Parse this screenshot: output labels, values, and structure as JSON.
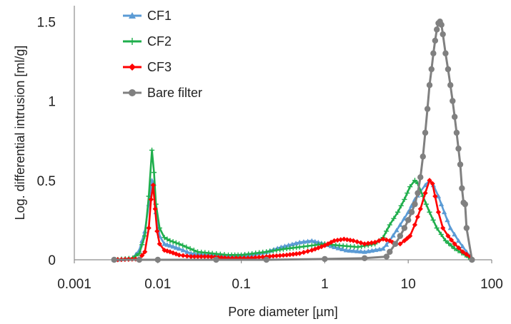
{
  "chart_data": {
    "type": "line",
    "xlabel": "Pore diameter [µm]",
    "ylabel": "Log. differential intrusion [ml/g]",
    "x_scale": "log",
    "xlim": [
      0.001,
      100
    ],
    "ylim": [
      0,
      1.6
    ],
    "x_ticks": [
      0.001,
      0.01,
      0.1,
      1,
      10,
      100
    ],
    "x_tick_labels": [
      "0.001",
      "0.01",
      "0.1",
      "1",
      "10",
      "100"
    ],
    "y_ticks": [
      0,
      0.5,
      1,
      1.5
    ],
    "y_tick_labels": [
      "0",
      "0.5",
      "1",
      "1.5"
    ],
    "grid": false,
    "legend_position": "top-left",
    "series": [
      {
        "name": "CF1",
        "color": "#5b9bd5",
        "marker": "triangle",
        "points": [
          [
            0.003,
            0
          ],
          [
            0.005,
            0.01
          ],
          [
            0.006,
            0.06
          ],
          [
            0.007,
            0.18
          ],
          [
            0.0078,
            0.35
          ],
          [
            0.0085,
            0.5
          ],
          [
            0.009,
            0.48
          ],
          [
            0.0095,
            0.3
          ],
          [
            0.0105,
            0.15
          ],
          [
            0.012,
            0.1
          ],
          [
            0.014,
            0.09
          ],
          [
            0.018,
            0.07
          ],
          [
            0.025,
            0.04
          ],
          [
            0.04,
            0.03
          ],
          [
            0.07,
            0.02
          ],
          [
            0.12,
            0.03
          ],
          [
            0.2,
            0.05
          ],
          [
            0.3,
            0.08
          ],
          [
            0.5,
            0.11
          ],
          [
            0.7,
            0.12
          ],
          [
            1,
            0.1
          ],
          [
            1.3,
            0.08
          ],
          [
            1.8,
            0.06
          ],
          [
            3,
            0.05
          ],
          [
            5,
            0.07
          ],
          [
            6,
            0.12
          ],
          [
            8,
            0.22
          ],
          [
            10,
            0.3
          ],
          [
            12,
            0.38
          ],
          [
            14,
            0.43
          ],
          [
            16,
            0.47
          ],
          [
            18,
            0.5
          ],
          [
            20,
            0.47
          ],
          [
            23,
            0.4
          ],
          [
            27,
            0.3
          ],
          [
            32,
            0.2
          ],
          [
            40,
            0.12
          ],
          [
            50,
            0.05
          ],
          [
            58,
            0
          ]
        ]
      },
      {
        "name": "CF2",
        "color": "#1fae4c",
        "marker": "plus",
        "points": [
          [
            0.003,
            0
          ],
          [
            0.005,
            0.01
          ],
          [
            0.006,
            0.04
          ],
          [
            0.007,
            0.15
          ],
          [
            0.0078,
            0.4
          ],
          [
            0.0085,
            0.69
          ],
          [
            0.009,
            0.55
          ],
          [
            0.0095,
            0.35
          ],
          [
            0.0105,
            0.2
          ],
          [
            0.012,
            0.14
          ],
          [
            0.014,
            0.12
          ],
          [
            0.018,
            0.1
          ],
          [
            0.022,
            0.08
          ],
          [
            0.03,
            0.05
          ],
          [
            0.045,
            0.04
          ],
          [
            0.07,
            0.03
          ],
          [
            0.1,
            0.03
          ],
          [
            0.2,
            0.05
          ],
          [
            0.35,
            0.07
          ],
          [
            0.5,
            0.08
          ],
          [
            0.7,
            0.09
          ],
          [
            1,
            0.1
          ],
          [
            1.5,
            0.09
          ],
          [
            2.5,
            0.08
          ],
          [
            4,
            0.1
          ],
          [
            5,
            0.14
          ],
          [
            6,
            0.22
          ],
          [
            7.5,
            0.3
          ],
          [
            9,
            0.38
          ],
          [
            10.5,
            0.46
          ],
          [
            12,
            0.5
          ],
          [
            13,
            0.48
          ],
          [
            15,
            0.4
          ],
          [
            18,
            0.3
          ],
          [
            22,
            0.2
          ],
          [
            28,
            0.12
          ],
          [
            36,
            0.07
          ],
          [
            48,
            0.03
          ],
          [
            58,
            0
          ]
        ]
      },
      {
        "name": "CF3",
        "color": "#ff0000",
        "marker": "diamond",
        "points": [
          [
            0.003,
            0
          ],
          [
            0.006,
            0.005
          ],
          [
            0.007,
            0.05
          ],
          [
            0.0078,
            0.2
          ],
          [
            0.0083,
            0.38
          ],
          [
            0.0088,
            0.47
          ],
          [
            0.0093,
            0.32
          ],
          [
            0.0098,
            0.18
          ],
          [
            0.0105,
            0.1
          ],
          [
            0.012,
            0.06
          ],
          [
            0.014,
            0.05
          ],
          [
            0.018,
            0.03
          ],
          [
            0.025,
            0.02
          ],
          [
            0.04,
            0.02
          ],
          [
            0.07,
            0.01
          ],
          [
            0.12,
            0.01
          ],
          [
            0.2,
            0.02
          ],
          [
            0.35,
            0.03
          ],
          [
            0.5,
            0.04
          ],
          [
            0.7,
            0.06
          ],
          [
            1,
            0.09
          ],
          [
            1.3,
            0.12
          ],
          [
            1.7,
            0.13
          ],
          [
            2.2,
            0.12
          ],
          [
            3,
            0.1
          ],
          [
            4,
            0.11
          ],
          [
            5,
            0.13
          ],
          [
            6,
            0.12
          ],
          [
            7,
            0.1
          ],
          [
            8,
            0.1
          ],
          [
            9,
            0.12
          ],
          [
            10.5,
            0.15
          ],
          [
            12,
            0.22
          ],
          [
            14,
            0.32
          ],
          [
            16,
            0.42
          ],
          [
            18,
            0.5
          ],
          [
            19.5,
            0.48
          ],
          [
            21,
            0.4
          ],
          [
            23,
            0.3
          ],
          [
            26,
            0.2
          ],
          [
            30,
            0.15
          ],
          [
            36,
            0.1
          ],
          [
            45,
            0.05
          ],
          [
            55,
            0.02
          ],
          [
            58,
            0
          ]
        ]
      },
      {
        "name": "Bare filter",
        "color": "#808080",
        "marker": "circle",
        "points": [
          [
            0.003,
            0
          ],
          [
            0.006,
            0
          ],
          [
            0.01,
            0
          ],
          [
            0.05,
            0
          ],
          [
            0.2,
            0
          ],
          [
            1,
            0.005
          ],
          [
            3,
            0.01
          ],
          [
            5.5,
            0.02
          ],
          [
            6,
            0.05
          ],
          [
            7,
            0.1
          ],
          [
            8,
            0.15
          ],
          [
            9,
            0.2
          ],
          [
            10,
            0.25
          ],
          [
            11,
            0.3
          ],
          [
            12,
            0.35
          ],
          [
            13,
            0.42
          ],
          [
            14,
            0.52
          ],
          [
            15,
            0.65
          ],
          [
            16,
            0.8
          ],
          [
            17,
            0.95
          ],
          [
            18,
            1.1
          ],
          [
            19,
            1.2
          ],
          [
            20,
            1.3
          ],
          [
            21,
            1.38
          ],
          [
            22,
            1.45
          ],
          [
            23,
            1.49
          ],
          [
            24,
            1.5
          ],
          [
            25,
            1.48
          ],
          [
            26,
            1.42
          ],
          [
            28,
            1.3
          ],
          [
            30,
            1.2
          ],
          [
            32,
            1.1
          ],
          [
            34,
            1.0
          ],
          [
            36,
            0.9
          ],
          [
            38,
            0.8
          ],
          [
            40,
            0.7
          ],
          [
            42,
            0.6
          ],
          [
            44,
            0.45
          ],
          [
            46,
            0.36
          ],
          [
            48,
            0.35
          ],
          [
            50,
            0.2
          ],
          [
            58,
            0
          ]
        ]
      }
    ]
  }
}
